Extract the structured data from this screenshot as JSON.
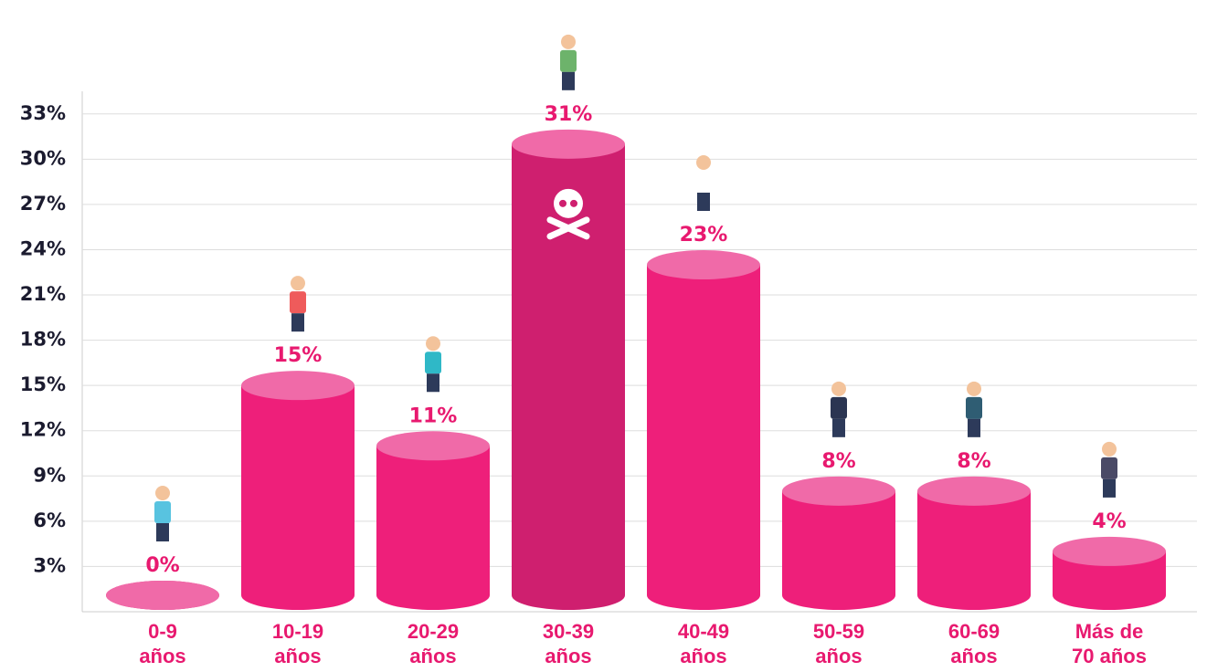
{
  "chart_data": {
    "type": "bar",
    "categories": [
      "0-9 años",
      "10-19 años",
      "20-29 años",
      "30-39 años",
      "40-49 años",
      "50-59 años",
      "60-69 años",
      "Más de 70 años"
    ],
    "values": [
      0,
      15,
      11,
      31,
      23,
      8,
      8,
      4
    ],
    "value_labels": [
      "0%",
      "15%",
      "11%",
      "31%",
      "23%",
      "8%",
      "8%",
      "4%"
    ],
    "color": "#ee1f7a",
    "ylim": [
      0,
      34.5
    ],
    "yticks": [
      {
        "value": 3,
        "label": "3%"
      },
      {
        "value": 6,
        "label": "6%"
      },
      {
        "value": 9,
        "label": "9%"
      },
      {
        "value": 12,
        "label": "12%"
      },
      {
        "value": 15,
        "label": "15%"
      },
      {
        "value": 18,
        "label": "18%"
      },
      {
        "value": 21,
        "label": "21%"
      },
      {
        "value": 24,
        "label": "24%"
      },
      {
        "value": 27,
        "label": "27%"
      },
      {
        "value": 30,
        "label": "30%"
      },
      {
        "value": 33,
        "label": "33%"
      }
    ],
    "grid": true
  }
}
